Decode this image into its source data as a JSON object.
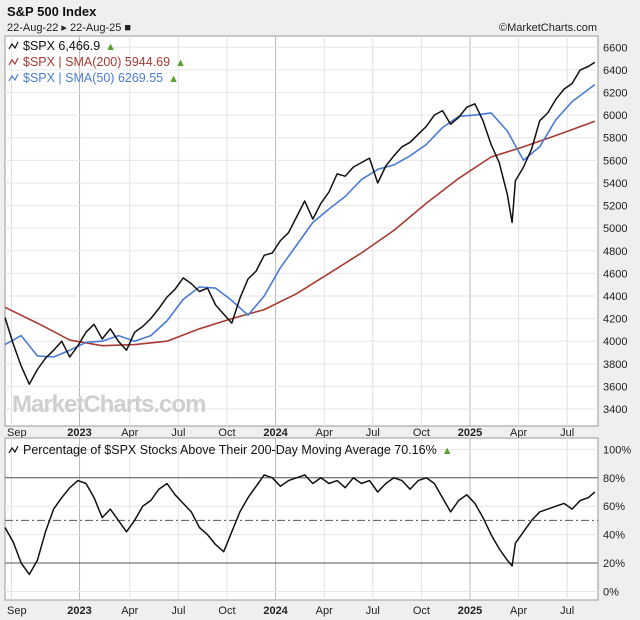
{
  "header": {
    "title": "S&P 500 Index",
    "date_range": "22-Aug-22 ▸ 22-Aug-25 ■",
    "brand": "©MarketCharts.com"
  },
  "watermark": "MarketCharts.com",
  "colors": {
    "price": "#111111",
    "sma200": "#a83a32",
    "sma50": "#4a7bd4",
    "breadth": "#111111",
    "up_arrow": "#5aa02c"
  },
  "x_axis": {
    "labels": [
      "Sep",
      "2023",
      "Apr",
      "Jul",
      "Oct",
      "2024",
      "Apr",
      "Jul",
      "Oct",
      "2025",
      "Apr",
      "Jul"
    ],
    "positions": [
      0.5,
      4.7,
      7.8,
      10.8,
      13.8,
      16.8,
      19.8,
      22.8,
      25.8,
      28.8,
      31.8,
      34.8
    ]
  },
  "chart_data": [
    {
      "type": "line",
      "title": "S&P 500 Index",
      "x_unit": "months since Aug-2022",
      "xlim": [
        0.1,
        36.7
      ],
      "ylim": [
        3250,
        6700
      ],
      "y_ticks": [
        3400,
        3600,
        3800,
        4000,
        4200,
        4400,
        4600,
        4800,
        5000,
        5200,
        5400,
        5600,
        5800,
        6000,
        6200,
        6400,
        6600
      ],
      "legend": [
        {
          "label": "$SPX 6,466.9",
          "series": "price"
        },
        {
          "label": "$SPX | SMA(200) 5944.69",
          "series": "sma200"
        },
        {
          "label": "$SPX | SMA(50) 6269.55",
          "series": "sma50"
        }
      ],
      "series": [
        {
          "name": "price",
          "x": [
            0.1,
            0.6,
            1.1,
            1.6,
            2.1,
            2.6,
            3.1,
            3.6,
            4.1,
            4.6,
            5.1,
            5.6,
            6.1,
            6.6,
            7.1,
            7.6,
            8.1,
            8.6,
            9.1,
            9.6,
            10.1,
            10.6,
            11.1,
            11.6,
            12.1,
            12.6,
            13.1,
            13.6,
            14.1,
            14.6,
            15.1,
            15.6,
            16.1,
            16.6,
            17.1,
            17.6,
            18.1,
            18.6,
            19.1,
            19.6,
            20.1,
            20.6,
            21.1,
            21.6,
            22.1,
            22.6,
            23.1,
            23.6,
            24.1,
            24.6,
            25.1,
            25.6,
            26.1,
            26.6,
            27.1,
            27.6,
            28.1,
            28.6,
            29.1,
            29.6,
            30.1,
            30.6,
            31.1,
            31.4,
            31.6,
            32.1,
            32.6,
            33.1,
            33.6,
            34.1,
            34.6,
            35.1,
            35.6,
            36.1,
            36.5
          ],
          "values": [
            4210,
            3980,
            3780,
            3620,
            3750,
            3850,
            3920,
            4000,
            3860,
            3960,
            4080,
            4150,
            4020,
            4110,
            4000,
            3920,
            4080,
            4130,
            4200,
            4290,
            4390,
            4460,
            4560,
            4510,
            4440,
            4470,
            4320,
            4240,
            4160,
            4380,
            4550,
            4620,
            4760,
            4780,
            4890,
            4960,
            5100,
            5240,
            5080,
            5220,
            5320,
            5480,
            5460,
            5540,
            5580,
            5620,
            5400,
            5550,
            5640,
            5720,
            5760,
            5830,
            5900,
            6000,
            6040,
            5920,
            5980,
            6070,
            6100,
            5950,
            5740,
            5580,
            5300,
            5050,
            5420,
            5540,
            5700,
            5950,
            6020,
            6140,
            6230,
            6280,
            6400,
            6430,
            6467
          ]
        },
        {
          "name": "sma200",
          "x": [
            0.1,
            2.1,
            4.1,
            6.1,
            8.1,
            10.1,
            12.1,
            14.1,
            16.1,
            18.1,
            20.1,
            22.1,
            24.1,
            26.1,
            28.1,
            30.1,
            32.1,
            34.1,
            36.5
          ],
          "values": [
            4300,
            4160,
            4010,
            3960,
            3970,
            4000,
            4110,
            4200,
            4280,
            4420,
            4600,
            4780,
            4980,
            5220,
            5440,
            5630,
            5720,
            5820,
            5945
          ]
        },
        {
          "name": "sma50",
          "x": [
            0.1,
            1.1,
            2.1,
            3.1,
            4.1,
            5.1,
            6.1,
            7.1,
            8.1,
            9.1,
            10.1,
            11.1,
            12.1,
            13.1,
            14.1,
            15.1,
            16.1,
            17.1,
            18.1,
            19.1,
            20.1,
            21.1,
            22.1,
            23.1,
            24.1,
            25.1,
            26.1,
            27.1,
            28.1,
            29.1,
            30.1,
            31.1,
            32.1,
            33.1,
            34.1,
            35.1,
            36.5
          ],
          "values": [
            3970,
            4050,
            3870,
            3860,
            3920,
            3990,
            4000,
            4050,
            4000,
            4050,
            4180,
            4370,
            4480,
            4470,
            4360,
            4230,
            4400,
            4650,
            4850,
            5050,
            5170,
            5280,
            5430,
            5520,
            5560,
            5640,
            5740,
            5890,
            5990,
            6000,
            6020,
            5860,
            5600,
            5720,
            5960,
            6120,
            6270
          ]
        }
      ]
    },
    {
      "type": "line",
      "title": "Percentage of $SPX Stocks Above Their 200-Day Moving Average 70.16%",
      "x_unit": "months since Aug-2022",
      "xlim": [
        0.1,
        36.7
      ],
      "ylim": [
        -6,
        108
      ],
      "y_ticks": [
        0,
        20,
        40,
        60,
        80,
        100
      ],
      "y_tick_labels": [
        "0%",
        "20%",
        "40%",
        "60%",
        "80%",
        "100%"
      ],
      "reference_lines": [
        20,
        50,
        80
      ],
      "series": [
        {
          "name": "breadth",
          "x": [
            0.1,
            0.6,
            1.1,
            1.6,
            2.1,
            2.6,
            3.1,
            3.6,
            4.1,
            4.6,
            5.1,
            5.6,
            6.1,
            6.6,
            7.1,
            7.6,
            8.1,
            8.6,
            9.1,
            9.6,
            10.1,
            10.6,
            11.1,
            11.6,
            12.1,
            12.6,
            13.1,
            13.6,
            14.1,
            14.6,
            15.1,
            15.6,
            16.1,
            16.6,
            17.1,
            17.6,
            18.1,
            18.6,
            19.1,
            19.6,
            20.1,
            20.6,
            21.1,
            21.6,
            22.1,
            22.6,
            23.1,
            23.6,
            24.1,
            24.6,
            25.1,
            25.6,
            26.1,
            26.6,
            27.1,
            27.6,
            28.1,
            28.6,
            29.1,
            29.6,
            30.1,
            30.6,
            31.1,
            31.4,
            31.6,
            32.1,
            32.6,
            33.1,
            33.6,
            34.1,
            34.6,
            35.1,
            35.6,
            36.1,
            36.5
          ],
          "values": [
            45,
            35,
            20,
            12,
            22,
            42,
            58,
            66,
            73,
            78,
            76,
            66,
            52,
            58,
            50,
            42,
            50,
            60,
            64,
            72,
            76,
            68,
            62,
            56,
            45,
            40,
            33,
            28,
            42,
            56,
            66,
            74,
            82,
            80,
            74,
            78,
            80,
            82,
            76,
            80,
            76,
            78,
            73,
            80,
            76,
            78,
            70,
            76,
            80,
            78,
            72,
            78,
            80,
            76,
            66,
            56,
            64,
            68,
            62,
            52,
            40,
            30,
            22,
            18,
            34,
            42,
            50,
            56,
            58,
            60,
            62,
            58,
            64,
            66,
            70
          ]
        }
      ]
    }
  ]
}
